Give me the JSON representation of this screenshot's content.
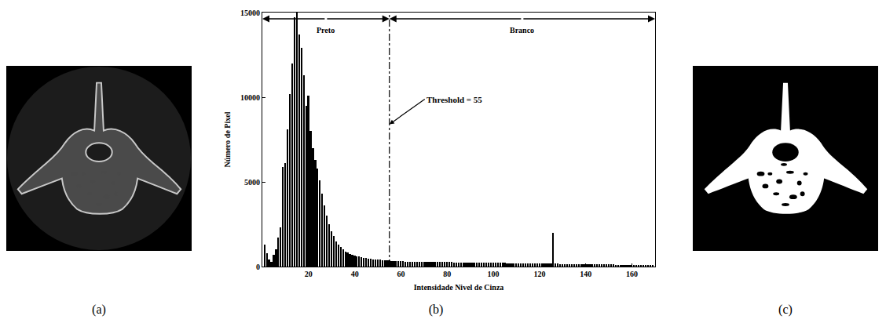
{
  "chart_data": {
    "type": "bar",
    "x_label": "Intensidade Nivel de Cinza",
    "y_label": "Número de Pixel",
    "color": "#000000",
    "xlim": [
      0,
      170
    ],
    "xticks": [
      20,
      40,
      60,
      80,
      100,
      120,
      140,
      160
    ],
    "ylim": [
      0,
      15000
    ],
    "yticks": [
      0,
      5000,
      10000,
      15000
    ],
    "grid": false,
    "threshold": 55,
    "threshold_label": "Threshold = 55",
    "regions": [
      "Preto",
      "Branco"
    ],
    "x": [
      1,
      2,
      3,
      4,
      5,
      6,
      7,
      8,
      9,
      10,
      11,
      12,
      13,
      14,
      15,
      16,
      17,
      18,
      19,
      20,
      21,
      22,
      23,
      24,
      25,
      26,
      27,
      28,
      29,
      30,
      31,
      32,
      33,
      34,
      35,
      36,
      37,
      38,
      39,
      40,
      41,
      42,
      43,
      44,
      45,
      46,
      47,
      48,
      49,
      50,
      51,
      52,
      53,
      54,
      55,
      56,
      57,
      58,
      59,
      60,
      61,
      62,
      63,
      64,
      65,
      66,
      67,
      68,
      69,
      70,
      71,
      72,
      73,
      74,
      75,
      76,
      77,
      78,
      79,
      80,
      81,
      82,
      83,
      84,
      85,
      86,
      87,
      88,
      89,
      90,
      91,
      92,
      93,
      94,
      95,
      96,
      97,
      98,
      99,
      100,
      101,
      102,
      103,
      104,
      105,
      106,
      107,
      108,
      109,
      110,
      111,
      112,
      113,
      114,
      115,
      116,
      117,
      118,
      119,
      120,
      121,
      122,
      123,
      124,
      125,
      126,
      127,
      128,
      129,
      130,
      131,
      132,
      133,
      134,
      135,
      136,
      137,
      138,
      139,
      140,
      141,
      142,
      143,
      144,
      145,
      146,
      147,
      148,
      149,
      150,
      151,
      152,
      153,
      154,
      155,
      156,
      157,
      158,
      159,
      160,
      161,
      162,
      163,
      164,
      165,
      166,
      167,
      168,
      169
    ],
    "values": [
      1300,
      800,
      400,
      300,
      700,
      1000,
      1700,
      2300,
      5900,
      6100,
      8100,
      10200,
      12000,
      14700,
      15000,
      13700,
      12900,
      11300,
      9500,
      10100,
      8000,
      7000,
      6300,
      5800,
      5100,
      4300,
      3600,
      3000,
      2500,
      2100,
      1800,
      1500,
      1300,
      1150,
      1000,
      900,
      820,
      760,
      700,
      660,
      620,
      590,
      560,
      530,
      500,
      480,
      460,
      440,
      420,
      410,
      395,
      380,
      370,
      360,
      350,
      340,
      330,
      320,
      315,
      310,
      305,
      300,
      298,
      295,
      292,
      290,
      288,
      285,
      283,
      280,
      278,
      276,
      274,
      272,
      270,
      268,
      266,
      264,
      262,
      260,
      258,
      256,
      254,
      252,
      250,
      248,
      246,
      244,
      242,
      240,
      238,
      236,
      234,
      232,
      230,
      228,
      226,
      224,
      222,
      220,
      218,
      216,
      214,
      212,
      210,
      208,
      206,
      204,
      202,
      200,
      198,
      196,
      194,
      192,
      190,
      188,
      186,
      184,
      182,
      180,
      178,
      176,
      174,
      172,
      170,
      2000,
      166,
      164,
      162,
      160,
      158,
      156,
      154,
      152,
      150,
      148,
      146,
      144,
      142,
      140,
      138,
      136,
      134,
      132,
      130,
      128,
      126,
      124,
      122,
      120,
      118,
      116,
      114,
      112,
      110,
      108,
      106,
      104,
      102,
      100,
      98,
      96,
      94,
      92,
      90,
      88,
      86,
      84,
      82
    ]
  },
  "panel_labels": [
    "(a)",
    "(b)",
    "(c)"
  ]
}
